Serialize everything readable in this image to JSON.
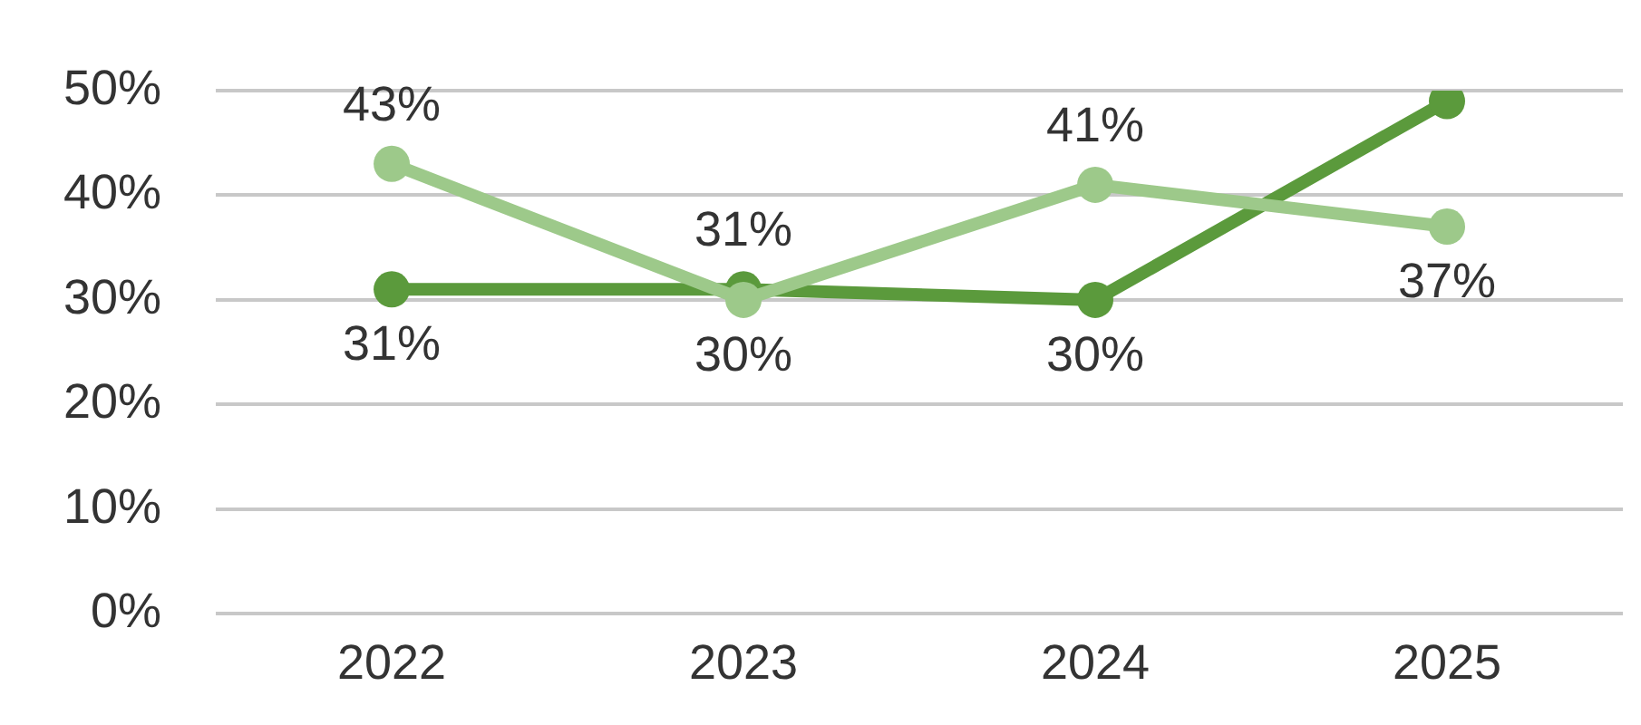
{
  "chart_data": {
    "type": "line",
    "categories": [
      "2022",
      "2023",
      "2024",
      "2025"
    ],
    "series": [
      {
        "color": "#9dc98a",
        "values": [
          43,
          30,
          41,
          37
        ],
        "value_labels": [
          "43%",
          "30%",
          "41%",
          "37%"
        ]
      },
      {
        "color": "#5b9a3c",
        "values": [
          31,
          31,
          30,
          49
        ],
        "value_labels": [
          "31%",
          "31%",
          "30%",
          null
        ]
      }
    ],
    "ylim": [
      0,
      50
    ],
    "yticks": [
      {
        "value": 0,
        "label": "0%"
      },
      {
        "value": 10,
        "label": "10%"
      },
      {
        "value": 20,
        "label": "20%"
      },
      {
        "value": 30,
        "label": "30%"
      },
      {
        "value": 40,
        "label": "40%"
      },
      {
        "value": 50,
        "label": "50%"
      }
    ],
    "grid": "y",
    "legend": false,
    "marker": "circle",
    "line_style": "solid"
  }
}
